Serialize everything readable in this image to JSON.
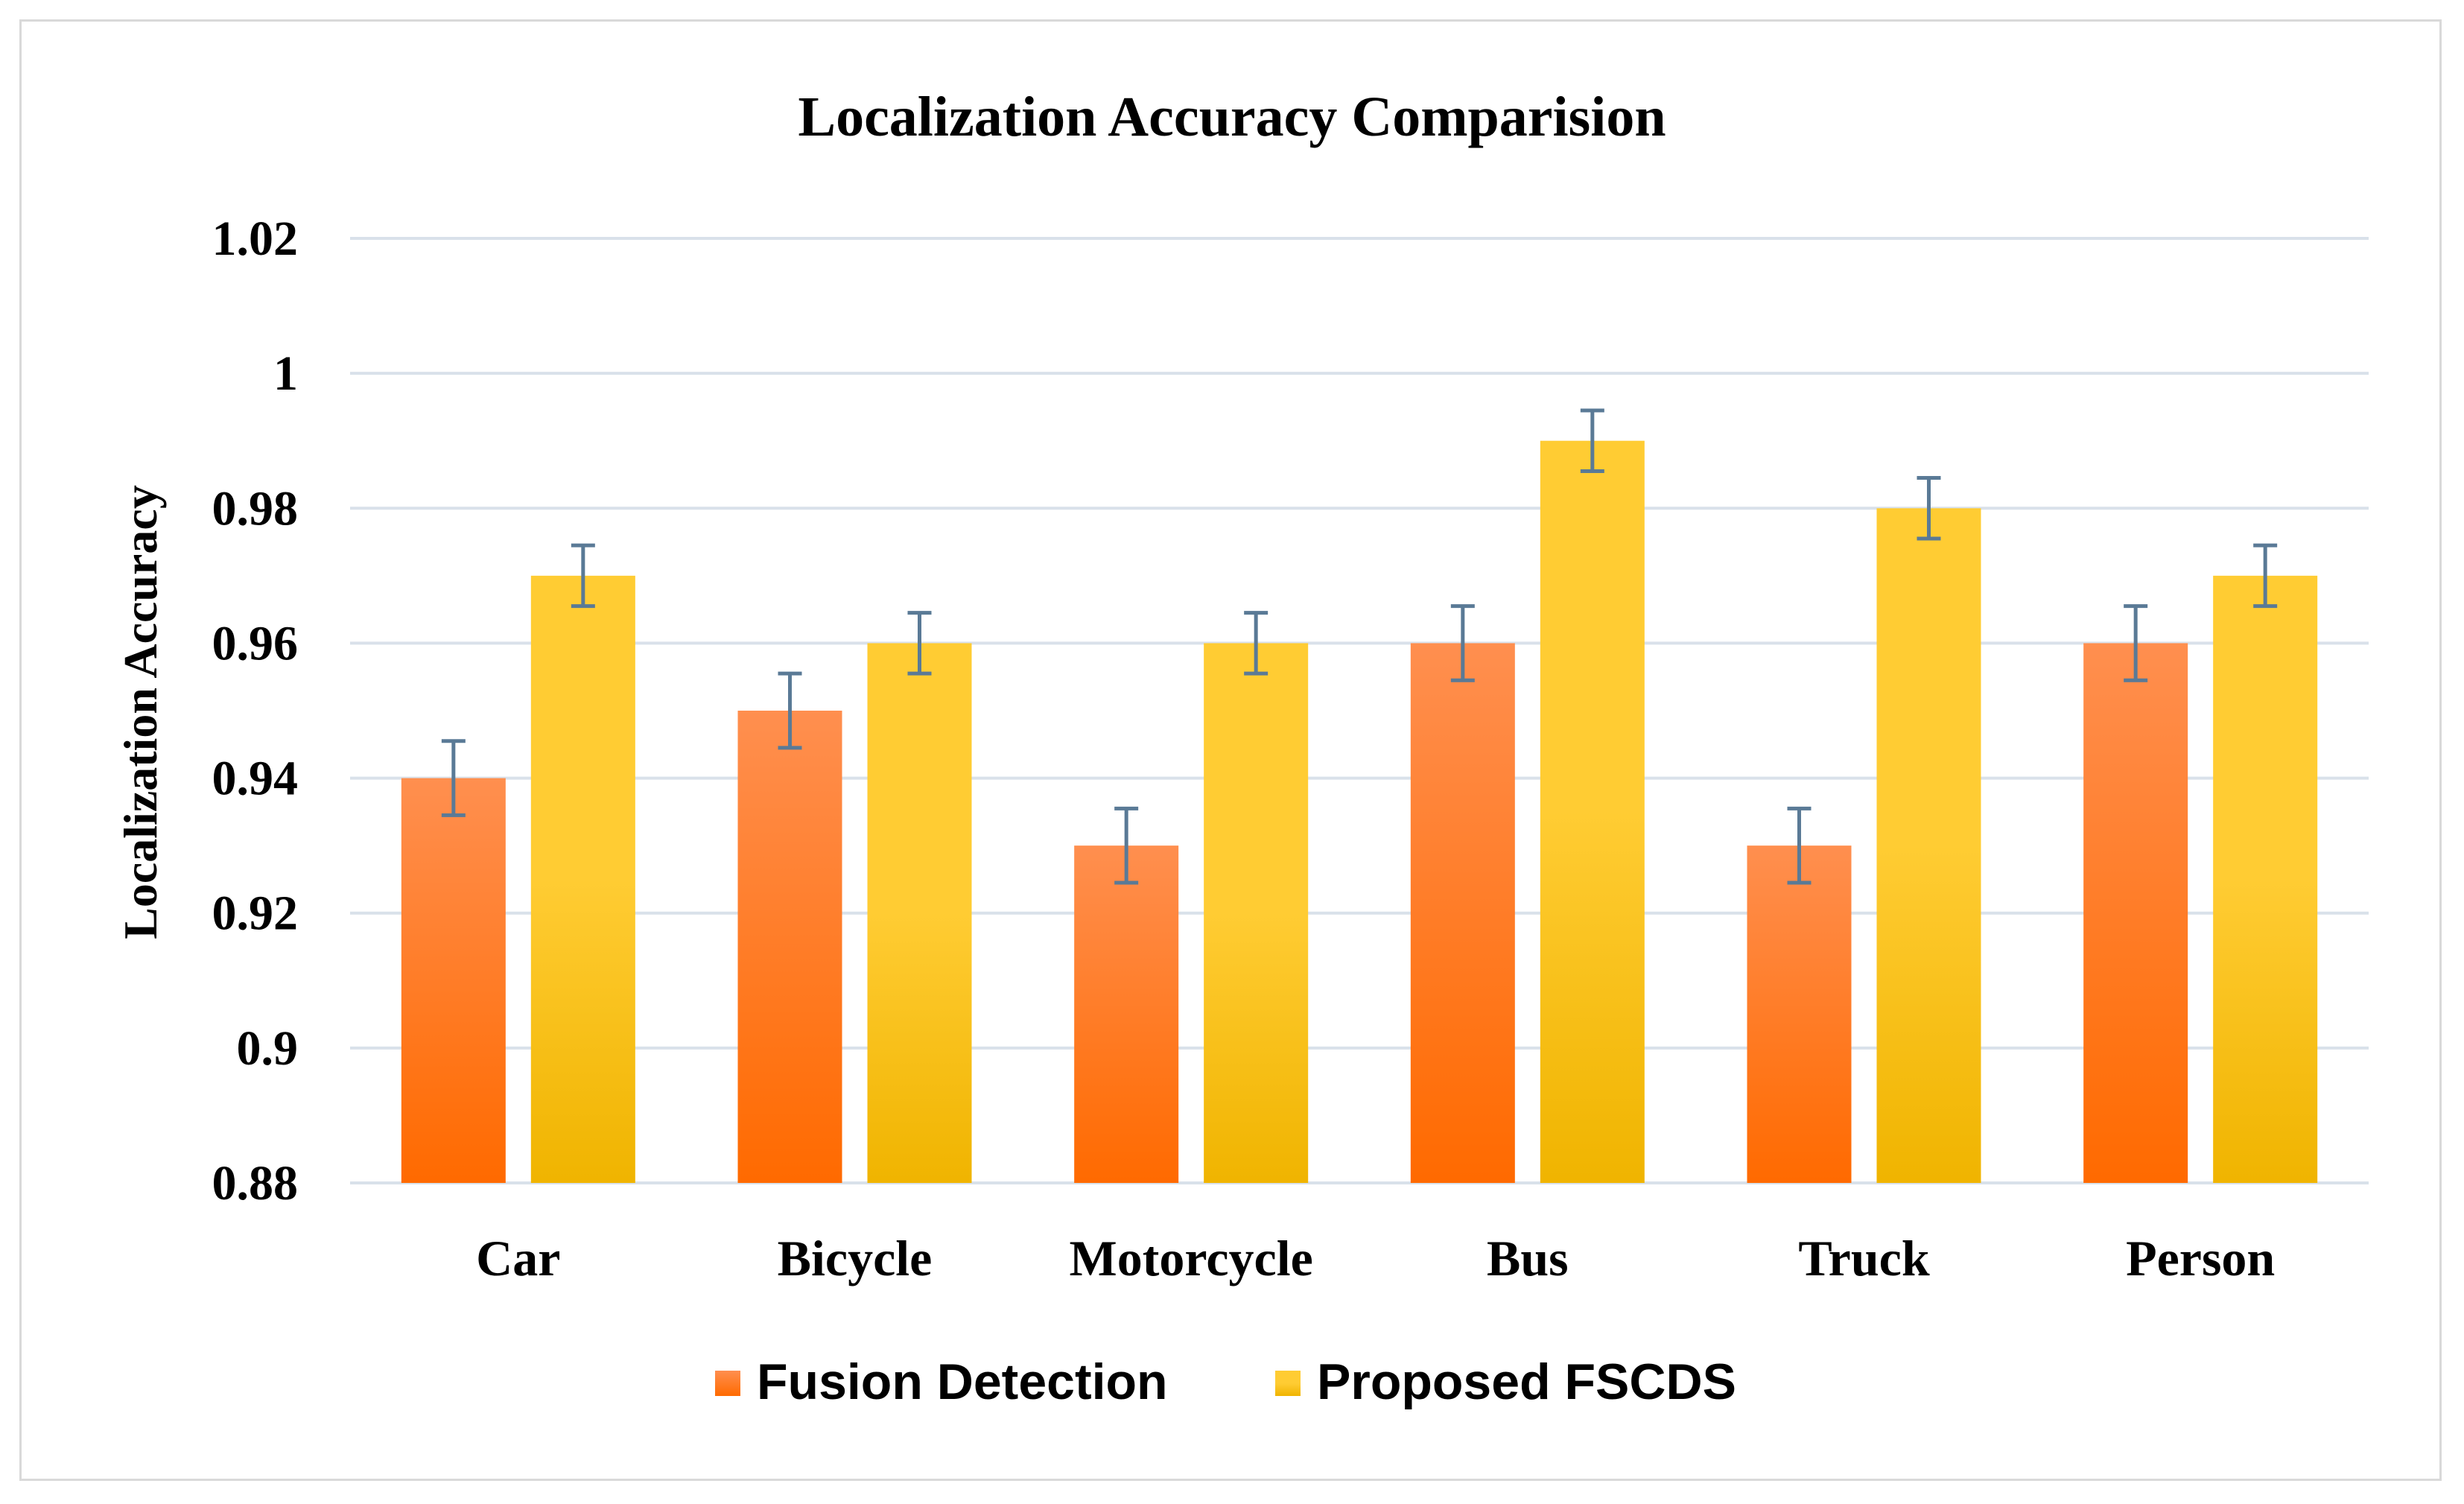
{
  "chart_data": {
    "type": "bar",
    "title": "Localization Accuracy Comparision",
    "xlabel": "",
    "ylabel": "Localization Accuracy",
    "ylim": [
      0.88,
      1.02
    ],
    "yticks": [
      0.88,
      0.9,
      0.92,
      0.94,
      0.96,
      0.98,
      1,
      1.02
    ],
    "ytick_labels": [
      "0.88",
      "0.9",
      "0.92",
      "0.94",
      "0.96",
      "0.98",
      "1",
      "1.02"
    ],
    "categories": [
      "Car",
      "Bicycle",
      "Motorcycle",
      "Bus",
      "Truck",
      "Person"
    ],
    "series": [
      {
        "name": "Fusion Detection",
        "values": [
          0.94,
          0.95,
          0.93,
          0.96,
          0.93,
          0.96
        ],
        "error": 0.0055,
        "color_top": "#ff8f4f",
        "color_bottom": "#ff6a00"
      },
      {
        "name": "Proposed FSCDS",
        "values": [
          0.97,
          0.96,
          0.96,
          0.99,
          0.98,
          0.97
        ],
        "error": 0.0045,
        "color_top": "#ffcc33",
        "color_bottom": "#f0b400"
      }
    ],
    "error_bar_color": "#5a7a96",
    "grid": true,
    "grid_color": "#d9e1ea",
    "legend_position": "bottom"
  }
}
